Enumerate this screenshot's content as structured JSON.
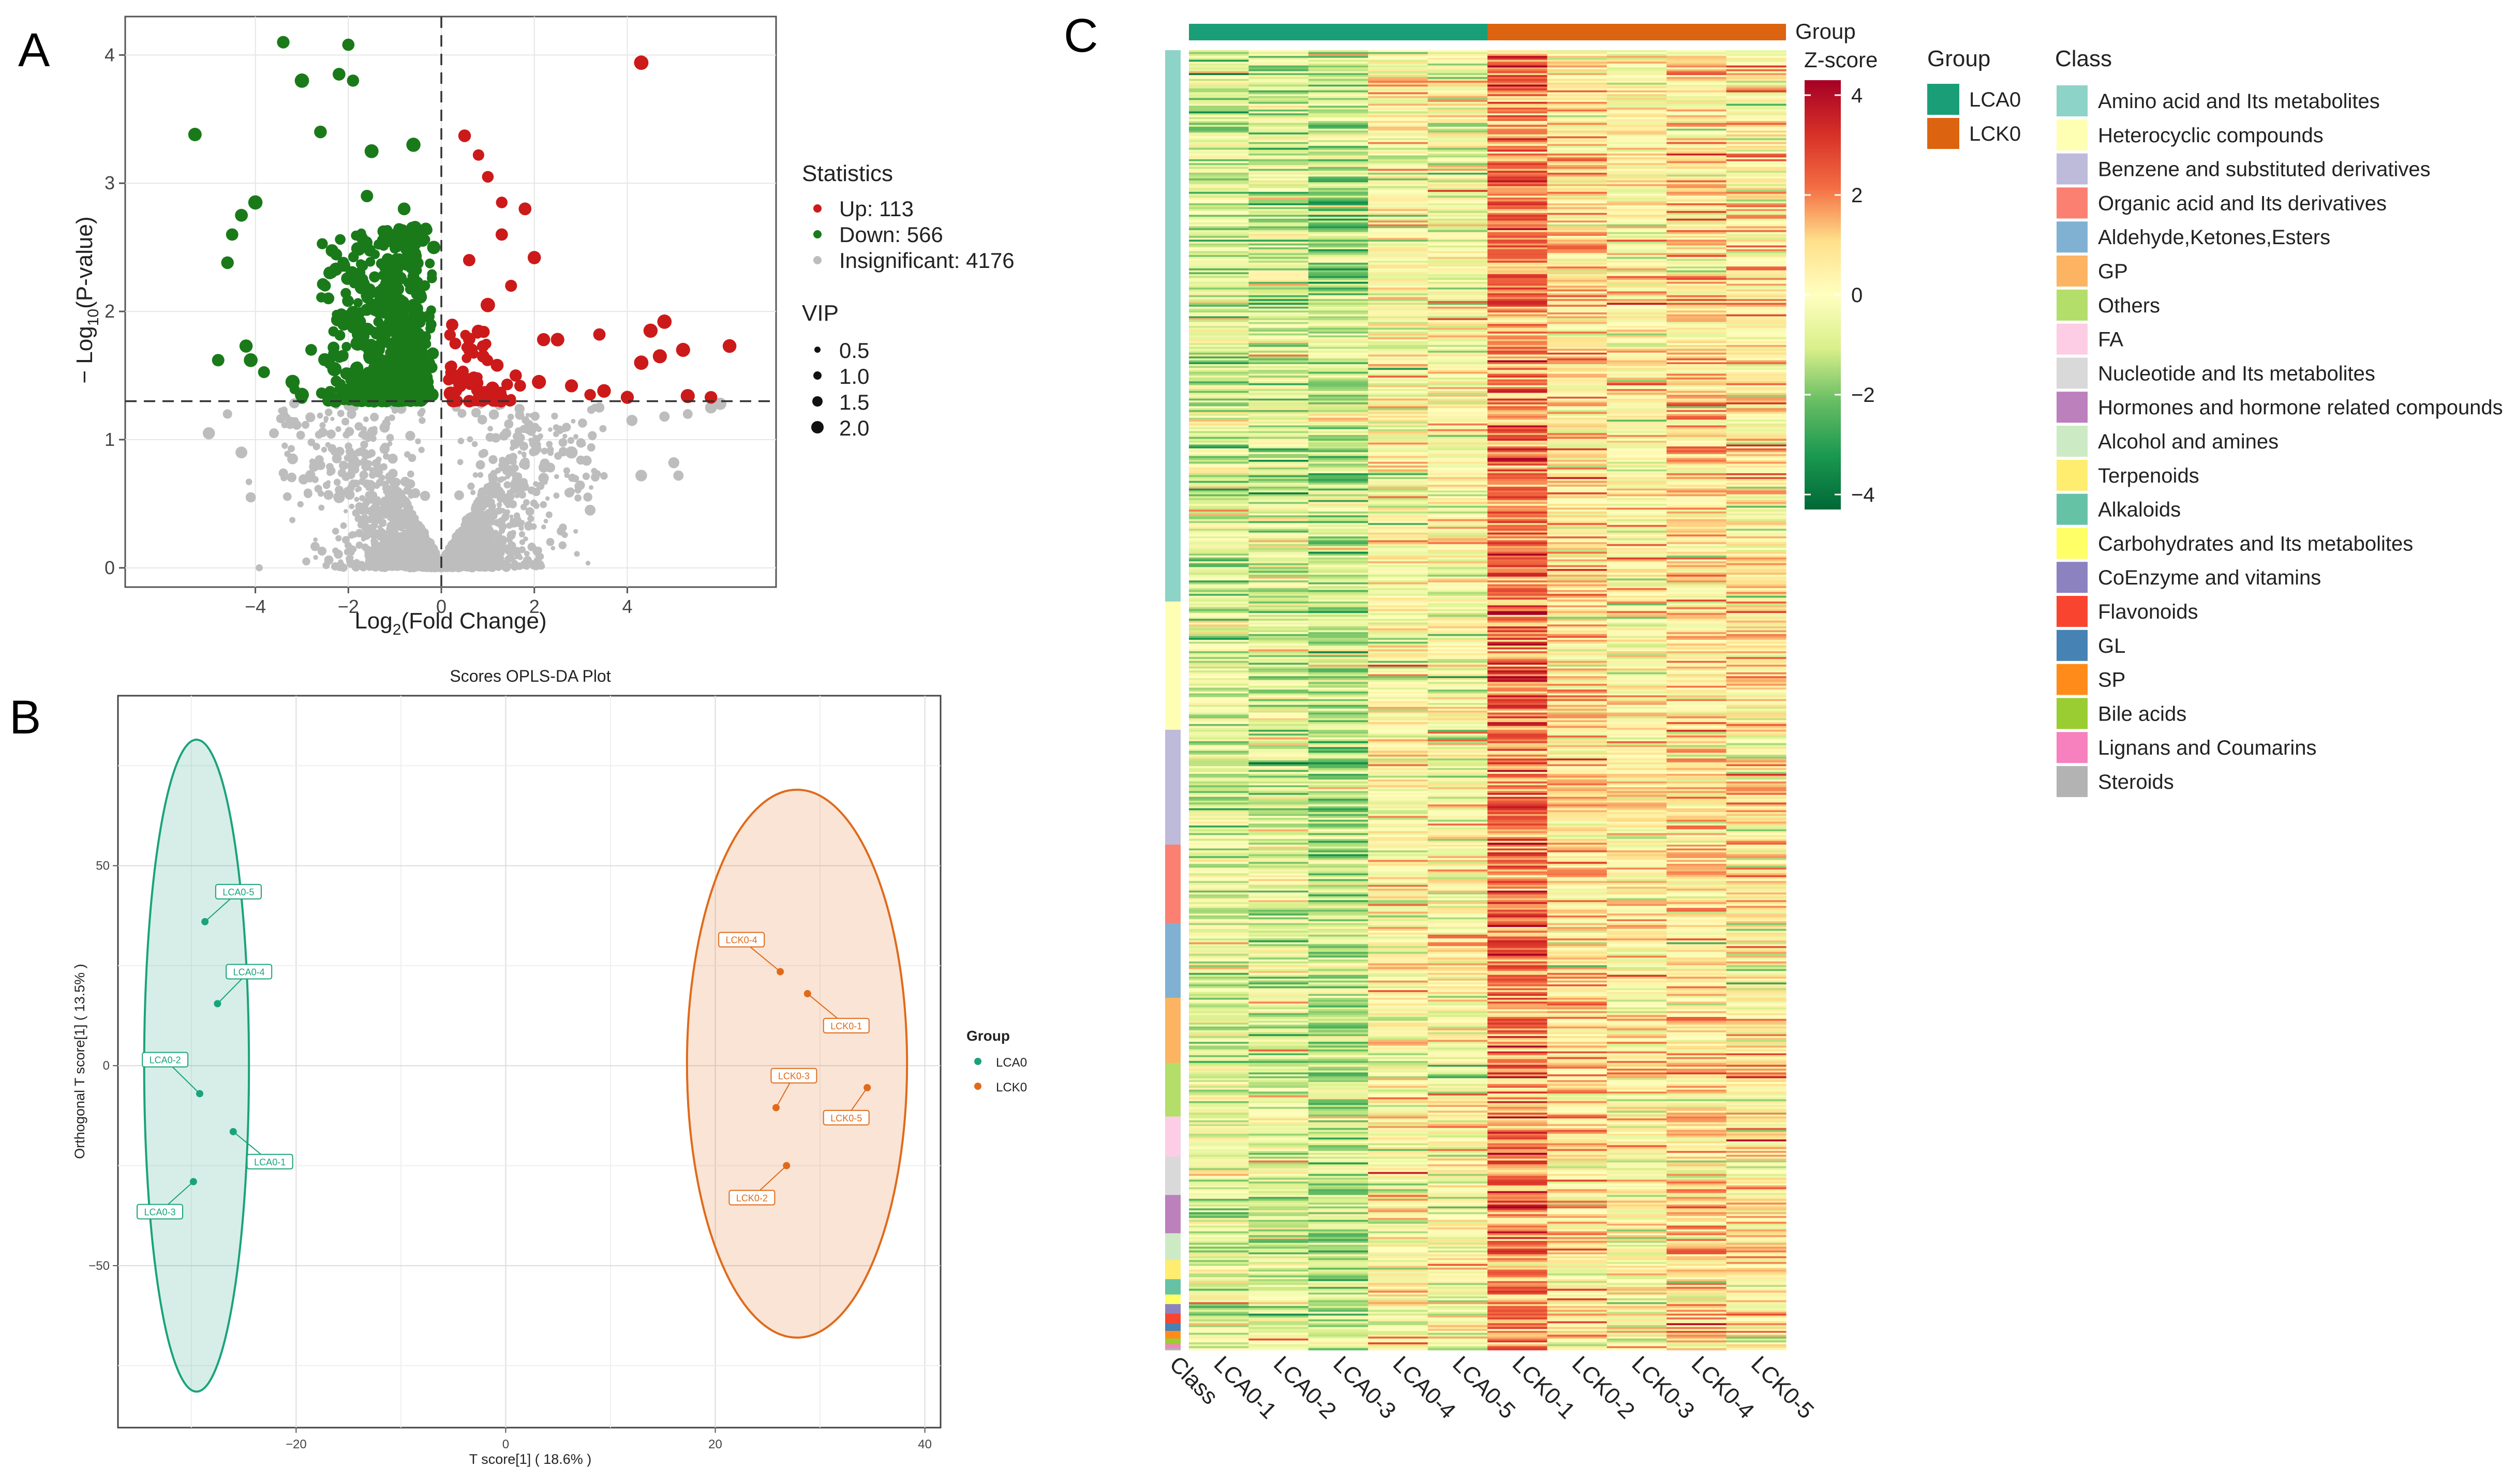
{
  "panels": {
    "a": "A",
    "b": "B",
    "c": "C"
  },
  "chart_data": [
    {
      "type": "scatter",
      "name": "volcano",
      "xlabel_main": "Log",
      "xlabel_sub": "2",
      "xlabel_rest": "(Fold Change)",
      "ylabel_main": "− Log",
      "ylabel_sub": "10",
      "ylabel_rest": "(P-value)",
      "xlim": [
        -6.8,
        7.2
      ],
      "ylim": [
        -0.15,
        4.3
      ],
      "x_ticks": [
        -4,
        -2,
        0,
        2,
        4
      ],
      "x_tick_labels": [
        "−4",
        "−2",
        "0",
        "2",
        "4"
      ],
      "y_ticks": [
        0,
        1,
        2,
        3,
        4
      ],
      "y_tick_labels": [
        "0",
        "1",
        "2",
        "3",
        "4"
      ],
      "threshold_x": 0,
      "threshold_y": 1.3,
      "legend_statistics": {
        "title": "Statistics",
        "items": [
          {
            "label": "Up: 113",
            "color": "#cc1a1a"
          },
          {
            "label": "Down: 566",
            "color": "#1a7a1a"
          },
          {
            "label": "Insignificant: 4176",
            "color": "#bdbdbd"
          }
        ]
      },
      "legend_vip": {
        "title": "VIP",
        "items": [
          "0.5",
          "1.0",
          "1.5",
          "2.0"
        ]
      },
      "series": [
        {
          "name": "Up",
          "count": 113,
          "color": "#cc1a1a",
          "points": [
            [
              4.3,
              3.94
            ],
            [
              0.5,
              3.37
            ],
            [
              0.8,
              3.22
            ],
            [
              1,
              3.05
            ],
            [
              1.3,
              2.85
            ],
            [
              1.8,
              2.8
            ],
            [
              1.3,
              2.6
            ],
            [
              2,
              2.42
            ],
            [
              0.6,
              2.4
            ],
            [
              1.5,
              2.2
            ],
            [
              1,
              2.05
            ],
            [
              2.2,
              1.78
            ],
            [
              4.5,
              1.85
            ],
            [
              4.8,
              1.92
            ],
            [
              6.2,
              1.73
            ],
            [
              5.2,
              1.7
            ],
            [
              4.3,
              1.6
            ],
            [
              4.7,
              1.65
            ],
            [
              3.4,
              1.82
            ],
            [
              2.5,
              1.78
            ],
            [
              0.3,
              1.75
            ],
            [
              0.6,
              1.7
            ],
            [
              0.9,
              1.65
            ],
            [
              1.2,
              1.58
            ],
            [
              1.6,
              1.5
            ],
            [
              2.1,
              1.45
            ],
            [
              2.8,
              1.42
            ],
            [
              3.5,
              1.38
            ],
            [
              3.2,
              1.35
            ],
            [
              5.8,
              1.33
            ],
            [
              5.3,
              1.34
            ],
            [
              4,
              1.33
            ],
            [
              0.4,
              1.42
            ],
            [
              0.7,
              1.48
            ],
            [
              1.1,
              1.4
            ],
            [
              0.2,
              1.36
            ]
          ]
        },
        {
          "name": "Down",
          "count": 566,
          "color": "#1a7a1a",
          "points": [
            [
              -3.4,
              4.1
            ],
            [
              -2,
              4.08
            ],
            [
              -2.2,
              3.85
            ],
            [
              -1.9,
              3.8
            ],
            [
              -3,
              3.8
            ],
            [
              -5.3,
              3.38
            ],
            [
              -2.6,
              3.4
            ],
            [
              -1.5,
              3.25
            ],
            [
              -0.6,
              3.3
            ],
            [
              -4,
              2.85
            ],
            [
              -4.3,
              2.75
            ],
            [
              -4.5,
              2.6
            ],
            [
              -4.6,
              2.38
            ],
            [
              -4.2,
              1.73
            ],
            [
              -4.8,
              1.62
            ],
            [
              -4.1,
              1.62
            ],
            [
              -3.2,
              1.45
            ],
            [
              -3,
              1.35
            ],
            [
              -2.5,
              2.2
            ],
            [
              -1.6,
              2.9
            ],
            [
              -1.2,
              2.6
            ],
            [
              -0.8,
              2.8
            ],
            [
              -0.4,
              2.55
            ],
            [
              -1,
              2.4
            ],
            [
              -2.1,
              1.9
            ],
            [
              -1.8,
              1.75
            ],
            [
              -1.4,
              1.6
            ],
            [
              -0.9,
              1.55
            ],
            [
              -0.5,
              1.7
            ],
            [
              -0.3,
              1.45
            ],
            [
              -2.8,
              1.7
            ],
            [
              -2.3,
              1.55
            ],
            [
              -1.9,
              1.42
            ],
            [
              -1.5,
              1.38
            ],
            [
              -1.1,
              1.45
            ],
            [
              -0.7,
              1.38
            ],
            [
              -0.2,
              1.35
            ],
            [
              -1.3,
              2.15
            ],
            [
              -1.7,
              2.25
            ],
            [
              -0.6,
              2.05
            ]
          ]
        },
        {
          "name": "Insignificant",
          "count": 4176,
          "color": "#bdbdbd",
          "points": [
            [
              3.4,
              1.25
            ],
            [
              4.1,
              1.15
            ],
            [
              4.8,
              1.18
            ],
            [
              5.3,
              1.2
            ],
            [
              5.8,
              1.25
            ],
            [
              6,
              1.28
            ],
            [
              4.3,
              0.72
            ],
            [
              5,
              0.82
            ],
            [
              5.1,
              0.72
            ],
            [
              3.2,
              0.45
            ],
            [
              -4.3,
              0.9
            ],
            [
              -4.1,
              0.55
            ],
            [
              -5,
              1.05
            ],
            [
              -4.6,
              1.2
            ],
            [
              -3.6,
              1.05
            ],
            [
              -3.2,
              0.85
            ],
            [
              2.8,
              0.9
            ],
            [
              2.2,
              0.7
            ],
            [
              -2.6,
              0.8
            ],
            [
              -2.2,
              0.55
            ]
          ]
        }
      ]
    },
    {
      "type": "scatter",
      "name": "opls-da",
      "title": "Scores OPLS-DA Plot",
      "xlabel": "T score[1] ( 18.6% )",
      "ylabel": "Orthogonal T score[1] ( 13.5% )",
      "xlim": [
        -37,
        41.5
      ],
      "ylim": [
        -90.5,
        92.5
      ],
      "x_ticks": [
        -20,
        0,
        20,
        40
      ],
      "x_tick_labels": [
        "−20",
        "0",
        "20",
        "40"
      ],
      "y_ticks": [
        -50,
        0,
        50
      ],
      "y_tick_labels": [
        "−50",
        "0",
        "50"
      ],
      "legend": {
        "title": "Group"
      },
      "series": [
        {
          "name": "LCA0",
          "color": "#1aa37a",
          "ellipse": {
            "cx": -29.5,
            "cy": 0,
            "rx": 5,
            "ry": 81.5
          },
          "points": [
            {
              "x": -28.7,
              "y": 36,
              "label": "LCA0-5",
              "lx": -25.5,
              "ly": 43.5
            },
            {
              "x": -27.5,
              "y": 15.5,
              "label": "LCA0-4",
              "lx": -24.5,
              "ly": 23.5
            },
            {
              "x": -29.2,
              "y": -7,
              "label": "LCA0-2",
              "lx": -32.5,
              "ly": 1.5
            },
            {
              "x": -26,
              "y": -16.5,
              "label": "LCA0-1",
              "lx": -22.5,
              "ly": -24
            },
            {
              "x": -29.8,
              "y": -29,
              "label": "LCA0-3",
              "lx": -33,
              "ly": -36.5
            }
          ]
        },
        {
          "name": "LCK0",
          "color": "#e06a1a",
          "ellipse": {
            "cx": 27.8,
            "cy": 0.5,
            "rx": 10.5,
            "ry": 68.5
          },
          "points": [
            {
              "x": 26.2,
              "y": 23.5,
              "label": "LCK0-4",
              "lx": 22.5,
              "ly": 31.5
            },
            {
              "x": 28.8,
              "y": 18,
              "label": "LCK0-1",
              "lx": 32.5,
              "ly": 10
            },
            {
              "x": 34.5,
              "y": -5.5,
              "label": "LCK0-5",
              "lx": 32.5,
              "ly": -13
            },
            {
              "x": 25.8,
              "y": -10.5,
              "label": "LCK0-3",
              "lx": 27.5,
              "ly": -2.5
            },
            {
              "x": 26.8,
              "y": -25,
              "label": "LCK0-2",
              "lx": 23.5,
              "ly": -33
            }
          ]
        }
      ]
    },
    {
      "type": "heatmap",
      "name": "heatmap",
      "columns": [
        "LCA0-1",
        "LCA0-2",
        "LCA0-3",
        "LCA0-4",
        "LCA0-5",
        "LCK0-1",
        "LCK0-2",
        "LCK0-3",
        "LCK0-4",
        "LCK0-5"
      ],
      "class_column_label": "Class",
      "group_bar_label": "Group",
      "groups": [
        {
          "name": "LCA0",
          "color": "#1a9e78",
          "span": 5
        },
        {
          "name": "LCK0",
          "color": "#dc6411",
          "span": 5
        }
      ],
      "group_means": [
        -0.7,
        -0.8,
        -1.2,
        0.1,
        0,
        2.0,
        0.7,
        0.3,
        0.8,
        0.5
      ],
      "rows": 679,
      "colorbar": {
        "title": "Z-score",
        "range": [
          -4.3,
          4.3
        ],
        "ticks": [
          4,
          2,
          0,
          -2,
          -4
        ],
        "tick_labels": [
          "4",
          "2",
          "0",
          "−2",
          "−4"
        ],
        "colors": [
          "#006837",
          "#1a9850",
          "#66bd63",
          "#d9ef8b",
          "#ffffbf",
          "#fee08b",
          "#f46d43",
          "#d73027",
          "#a50026"
        ]
      },
      "class_legend_title": "Class",
      "classes": [
        {
          "name": "Amino acid and Its metabolites",
          "color": "#8dd3c7",
          "rows": 288
        },
        {
          "name": "Heterocyclic compounds",
          "color": "#ffffb3",
          "rows": 67
        },
        {
          "name": "Benzene and substituted derivatives",
          "color": "#bebada",
          "rows": 60
        },
        {
          "name": "Organic acid and Its derivatives",
          "color": "#fb8072",
          "rows": 41
        },
        {
          "name": "Aldehyde,Ketones,Esters",
          "color": "#80b1d3",
          "rows": 39
        },
        {
          "name": "GP",
          "color": "#fdb462",
          "rows": 34
        },
        {
          "name": "Others",
          "color": "#b3de69",
          "rows": 28
        },
        {
          "name": "FA",
          "color": "#fccde5",
          "rows": 21
        },
        {
          "name": "Nucleotide and Its metabolites",
          "color": "#d9d9d9",
          "rows": 20
        },
        {
          "name": "Hormones and hormone related compounds",
          "color": "#bc80bd",
          "rows": 20
        },
        {
          "name": "Alcohol and amines",
          "color": "#ccebc5",
          "rows": 14
        },
        {
          "name": "Terpenoids",
          "color": "#ffed6f",
          "rows": 10
        },
        {
          "name": "Alkaloids",
          "color": "#66c2a5",
          "rows": 8
        },
        {
          "name": "Carbohydrates and Its metabolites",
          "color": "#ffff66",
          "rows": 5
        },
        {
          "name": "CoEnzyme and vitamins",
          "color": "#8d82c0",
          "rows": 5
        },
        {
          "name": "Flavonoids",
          "color": "#f94530",
          "rows": 5
        },
        {
          "name": "GL",
          "color": "#4682b4",
          "rows": 4
        },
        {
          "name": "SP",
          "color": "#ff8c1a",
          "rows": 4
        },
        {
          "name": "Bile acids",
          "color": "#9acd32",
          "rows": 3
        },
        {
          "name": "Lignans and Coumarins",
          "color": "#f781bf",
          "rows": 2
        },
        {
          "name": "Steroids",
          "color": "#b3b3b3",
          "rows": 1
        }
      ]
    }
  ]
}
